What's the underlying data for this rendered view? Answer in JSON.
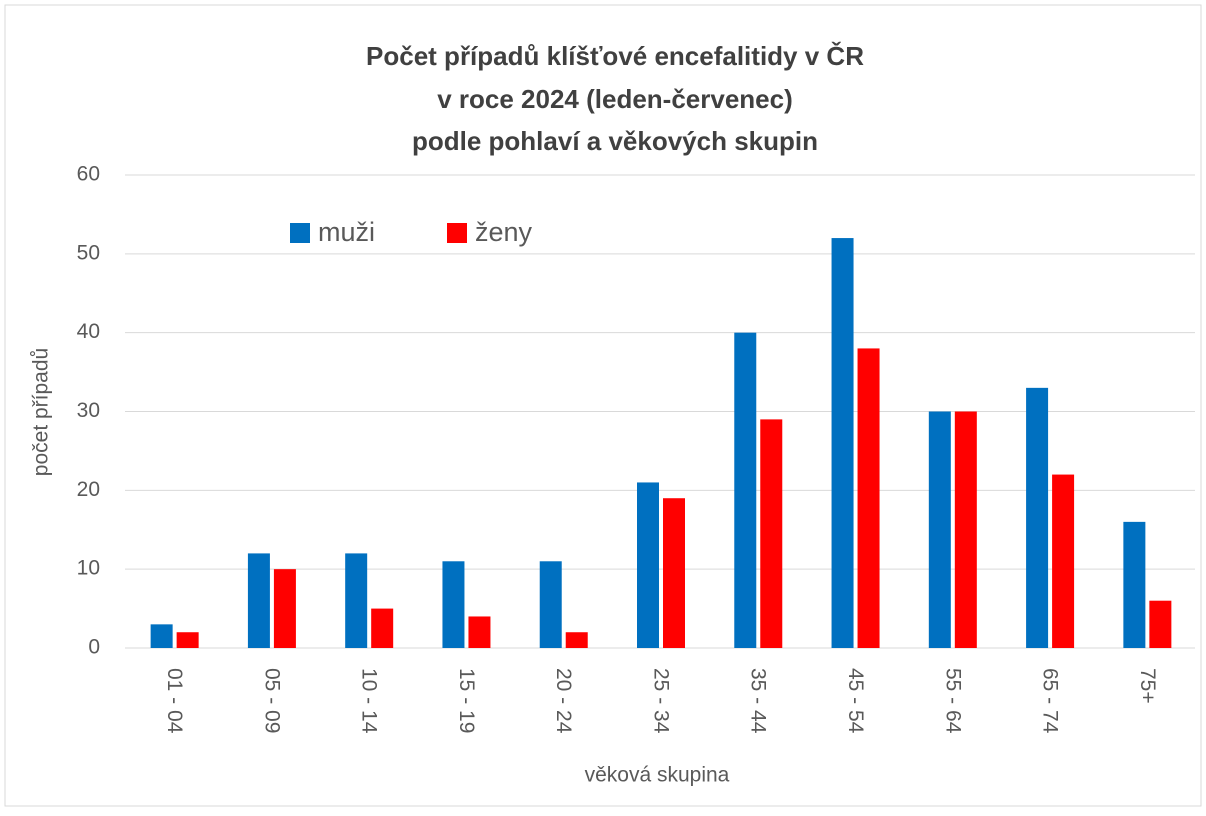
{
  "chart_data": {
    "type": "bar",
    "title": [
      "Počet případů klíšťové encefalitidy v ČR",
      "v roce 2024 (leden-červenec)",
      "podle pohlaví a věkových skupin"
    ],
    "x_label": "věková skupina",
    "y_label": "počet případů",
    "categories": [
      "01 - 04",
      "05 - 09",
      "10 - 14",
      "15 - 19",
      "20 - 24",
      "25 - 34",
      "35 - 44",
      "45 - 54",
      "55 - 64",
      "65 - 74",
      "75+"
    ],
    "series": [
      {
        "name": "muži",
        "color": "#0070c0",
        "values": [
          3,
          12,
          12,
          11,
          11,
          21,
          40,
          52,
          30,
          33,
          16
        ]
      },
      {
        "name": "ženy",
        "color": "#ff0000",
        "values": [
          2,
          10,
          5,
          4,
          2,
          19,
          29,
          38,
          30,
          22,
          6
        ]
      }
    ],
    "ylim": [
      0,
      60
    ],
    "yticks": [
      0,
      10,
      20,
      30,
      40,
      50,
      60
    ],
    "grid": true
  }
}
